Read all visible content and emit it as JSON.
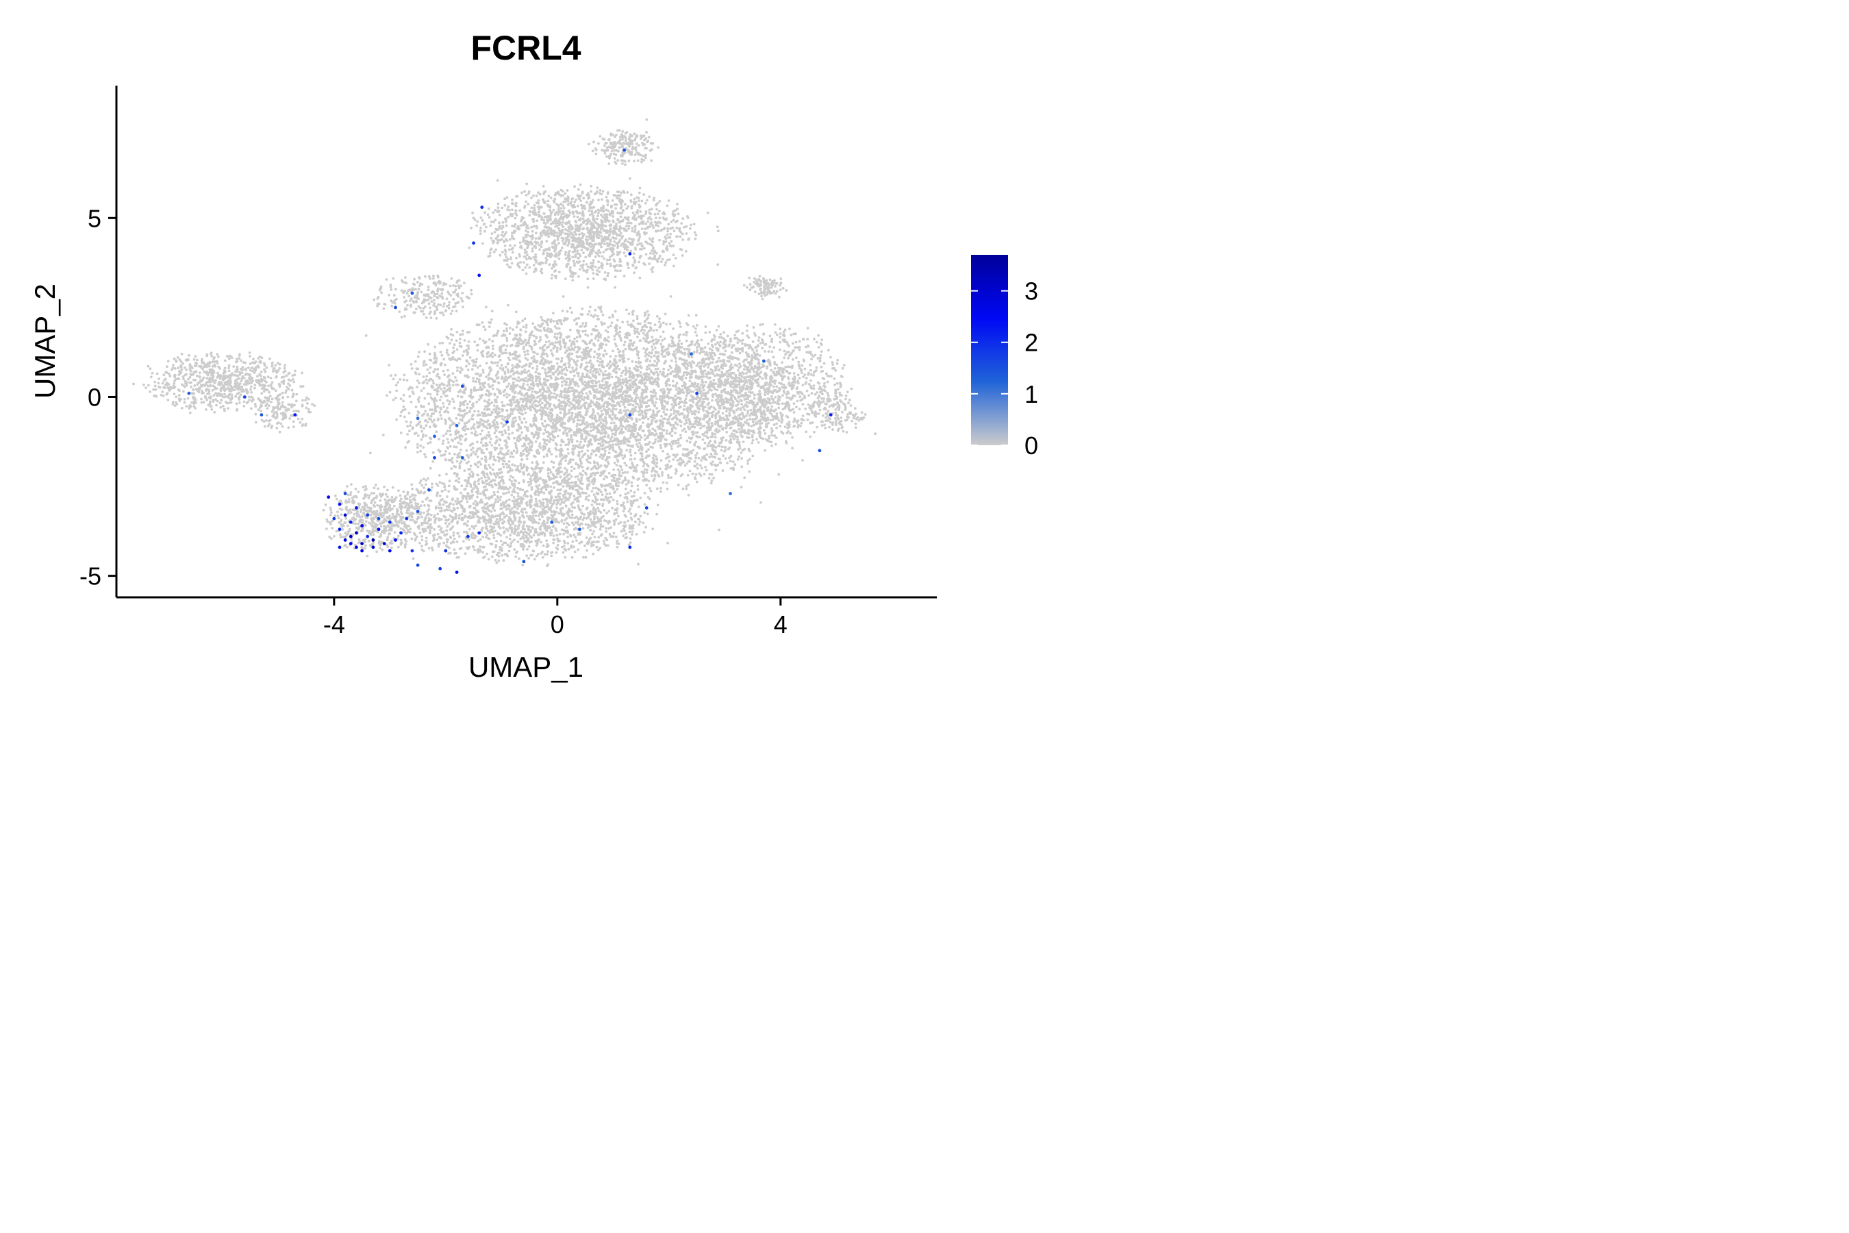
{
  "chart_data": {
    "type": "scatter",
    "title": "FCRL4",
    "xlabel": "UMAP_1",
    "ylabel": "UMAP_2",
    "xlim": [
      -7.9,
      6.8
    ],
    "ylim": [
      -5.6,
      8.7
    ],
    "xticks": [
      -4,
      0,
      4
    ],
    "yticks": [
      -5,
      0,
      5
    ],
    "grid": false,
    "legend": {
      "placement": "right",
      "type": "colorbar",
      "min": 0,
      "max": 3.7,
      "ticks": [
        0,
        1,
        2,
        3
      ],
      "colors": [
        "#cccccc",
        "#2064d8",
        "#0008f5",
        "#00009b"
      ]
    },
    "background_color": "#cccccc",
    "background_regions": [
      {
        "name": "left-arm",
        "cx": -6.0,
        "cy": 0.4,
        "rx": 1.4,
        "ry": 0.8,
        "n": 700
      },
      {
        "name": "left-arm-tip",
        "cx": -4.9,
        "cy": -0.4,
        "rx": 0.6,
        "ry": 0.5,
        "n": 120
      },
      {
        "name": "upper-lobe",
        "cx": 0.5,
        "cy": 4.6,
        "rx": 1.9,
        "ry": 1.3,
        "n": 1500
      },
      {
        "name": "top-peak",
        "cx": 1.2,
        "cy": 7.0,
        "rx": 0.6,
        "ry": 0.5,
        "n": 180
      },
      {
        "name": "upper-left-bridge",
        "cx": -2.4,
        "cy": 2.8,
        "rx": 0.9,
        "ry": 0.6,
        "n": 220
      },
      {
        "name": "main-body",
        "cx": 0.6,
        "cy": -0.2,
        "rx": 3.4,
        "ry": 2.6,
        "n": 5200
      },
      {
        "name": "main-right",
        "cx": 3.6,
        "cy": 0.3,
        "rx": 1.6,
        "ry": 1.7,
        "n": 1100
      },
      {
        "name": "right-tip",
        "cx": 5.0,
        "cy": -0.5,
        "rx": 0.5,
        "ry": 0.5,
        "n": 100
      },
      {
        "name": "right-bump",
        "cx": 3.7,
        "cy": 3.1,
        "rx": 0.35,
        "ry": 0.35,
        "n": 90
      },
      {
        "name": "lower-body",
        "cx": -0.7,
        "cy": -3.3,
        "rx": 2.4,
        "ry": 1.3,
        "n": 1600
      },
      {
        "name": "lower-left",
        "cx": -3.3,
        "cy": -3.4,
        "rx": 0.9,
        "ry": 0.9,
        "n": 500
      }
    ],
    "expressing_cells": [
      {
        "x": -3.9,
        "y": -3.0,
        "v": 2.4
      },
      {
        "x": -3.8,
        "y": -3.3,
        "v": 2.9
      },
      {
        "x": -3.7,
        "y": -3.5,
        "v": 2.2
      },
      {
        "x": -3.6,
        "y": -3.8,
        "v": 3.1
      },
      {
        "x": -3.8,
        "y": -4.0,
        "v": 2.6
      },
      {
        "x": -3.5,
        "y": -4.1,
        "v": 3.3
      },
      {
        "x": -3.4,
        "y": -3.9,
        "v": 2.0
      },
      {
        "x": -3.6,
        "y": -4.2,
        "v": 2.8
      },
      {
        "x": -3.3,
        "y": -4.0,
        "v": 3.5
      },
      {
        "x": -3.7,
        "y": -4.1,
        "v": 2.5
      },
      {
        "x": -3.9,
        "y": -3.7,
        "v": 2.1
      },
      {
        "x": -4.0,
        "y": -3.4,
        "v": 1.8
      },
      {
        "x": -3.5,
        "y": -3.6,
        "v": 2.7
      },
      {
        "x": -3.2,
        "y": -3.7,
        "v": 2.3
      },
      {
        "x": -3.1,
        "y": -4.1,
        "v": 2.9
      },
      {
        "x": -3.0,
        "y": -3.5,
        "v": 1.9
      },
      {
        "x": -2.9,
        "y": -4.0,
        "v": 2.4
      },
      {
        "x": -3.4,
        "y": -3.3,
        "v": 1.7
      },
      {
        "x": -3.6,
        "y": -3.1,
        "v": 2.2
      },
      {
        "x": -4.1,
        "y": -2.8,
        "v": 2.6
      },
      {
        "x": -3.8,
        "y": -2.7,
        "v": 1.6
      },
      {
        "x": -3.3,
        "y": -4.2,
        "v": 3.0
      },
      {
        "x": -2.8,
        "y": -3.8,
        "v": 2.1
      },
      {
        "x": -3.0,
        "y": -4.3,
        "v": 2.5
      },
      {
        "x": -2.6,
        "y": -4.3,
        "v": 1.8
      },
      {
        "x": -3.7,
        "y": -3.9,
        "v": 3.2
      },
      {
        "x": -3.5,
        "y": -4.3,
        "v": 2.7
      },
      {
        "x": -3.9,
        "y": -4.2,
        "v": 2.3
      },
      {
        "x": -3.2,
        "y": -3.4,
        "v": 1.5
      },
      {
        "x": -2.7,
        "y": -3.4,
        "v": 1.9
      },
      {
        "x": -2.2,
        "y": -1.7,
        "v": 1.6
      },
      {
        "x": -2.3,
        "y": -2.6,
        "v": 1.4
      },
      {
        "x": -2.0,
        "y": -4.3,
        "v": 2.0
      },
      {
        "x": -2.1,
        "y": -4.8,
        "v": 1.7
      },
      {
        "x": -1.8,
        "y": -4.9,
        "v": 2.4
      },
      {
        "x": -1.6,
        "y": -3.9,
        "v": 1.8
      },
      {
        "x": -1.4,
        "y": -3.8,
        "v": 2.1
      },
      {
        "x": -2.5,
        "y": -3.2,
        "v": 1.5
      },
      {
        "x": -2.9,
        "y": 2.5,
        "v": 1.6
      },
      {
        "x": -2.6,
        "y": 2.9,
        "v": 1.4
      },
      {
        "x": -1.5,
        "y": 4.3,
        "v": 1.9
      },
      {
        "x": -1.4,
        "y": 3.4,
        "v": 2.3
      },
      {
        "x": -1.35,
        "y": 5.3,
        "v": 2.0
      },
      {
        "x": -2.2,
        "y": -1.1,
        "v": 1.3
      },
      {
        "x": -1.8,
        "y": -0.8,
        "v": 1.2
      },
      {
        "x": -1.7,
        "y": 0.3,
        "v": 1.5
      },
      {
        "x": -2.5,
        "y": -0.6,
        "v": 1.1
      },
      {
        "x": -4.7,
        "y": -0.5,
        "v": 2.2
      },
      {
        "x": -5.3,
        "y": -0.5,
        "v": 1.4
      },
      {
        "x": -5.6,
        "y": 0.0,
        "v": 1.6
      },
      {
        "x": -6.6,
        "y": 0.1,
        "v": 1.3
      },
      {
        "x": 1.3,
        "y": 4.0,
        "v": 2.1
      },
      {
        "x": 1.2,
        "y": 6.9,
        "v": 1.5
      },
      {
        "x": 1.3,
        "y": -4.2,
        "v": 2.0
      },
      {
        "x": 1.6,
        "y": -3.1,
        "v": 1.6
      },
      {
        "x": 2.5,
        "y": 0.1,
        "v": 1.7
      },
      {
        "x": 2.4,
        "y": 1.2,
        "v": 1.2
      },
      {
        "x": 3.7,
        "y": 1.0,
        "v": 1.3
      },
      {
        "x": 1.3,
        "y": -0.5,
        "v": 1.6
      },
      {
        "x": 4.9,
        "y": -0.5,
        "v": 2.2
      },
      {
        "x": 4.7,
        "y": -1.5,
        "v": 1.5
      },
      {
        "x": 3.1,
        "y": -2.7,
        "v": 1.1
      },
      {
        "x": -0.9,
        "y": -0.7,
        "v": 1.8
      },
      {
        "x": -0.1,
        "y": -3.5,
        "v": 1.4
      },
      {
        "x": 0.4,
        "y": -3.7,
        "v": 1.3
      },
      {
        "x": -0.6,
        "y": -4.6,
        "v": 1.5
      },
      {
        "x": -1.7,
        "y": -1.7,
        "v": 1.3
      },
      {
        "x": -2.5,
        "y": -4.7,
        "v": 1.6
      }
    ]
  }
}
